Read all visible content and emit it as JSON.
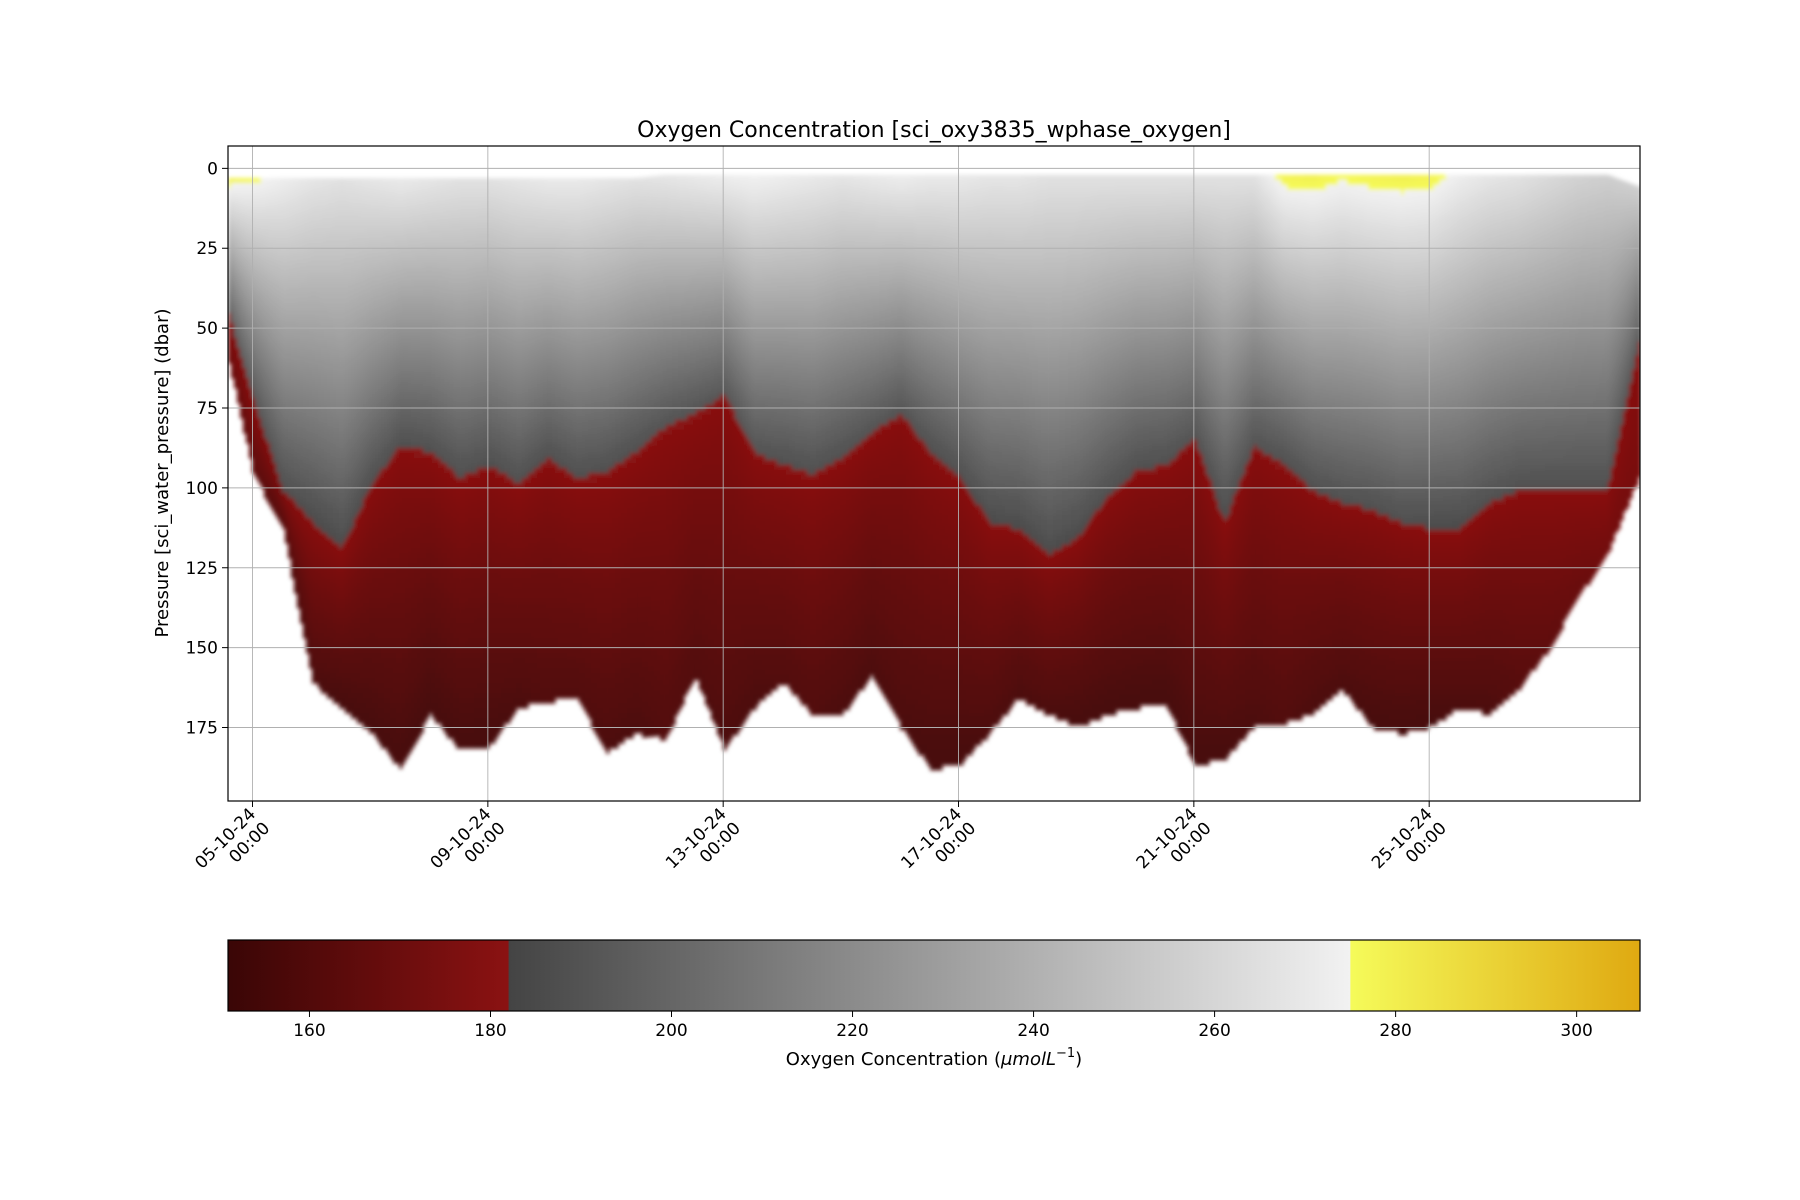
{
  "chart_data": {
    "type": "scatter",
    "title": "Oxygen Concentration [sci_oxy3835_wphase_oxygen]",
    "ylabel": "Pressure [sci_water_pressure] (dbar)",
    "y_inverted": true,
    "ylim": [
      198,
      -7
    ],
    "yticks": [
      0,
      25,
      50,
      75,
      100,
      125,
      150,
      175
    ],
    "xlim": [
      "2024-10-04T14:00",
      "2024-10-28T14:00"
    ],
    "xticks": [
      {
        "date": "2024-10-05T00:00",
        "line1": "05-10-24",
        "line2": "00:00"
      },
      {
        "date": "2024-10-09T00:00",
        "line1": "09-10-24",
        "line2": "00:00"
      },
      {
        "date": "2024-10-13T00:00",
        "line1": "13-10-24",
        "line2": "00:00"
      },
      {
        "date": "2024-10-17T00:00",
        "line1": "17-10-24",
        "line2": "00:00"
      },
      {
        "date": "2024-10-21T00:00",
        "line1": "21-10-24",
        "line2": "00:00"
      },
      {
        "date": "2024-10-25T00:00",
        "line1": "25-10-24",
        "line2": "00:00"
      }
    ],
    "grid": true,
    "series": [
      {
        "x": [
          "2024-10-04T14:00",
          "2024-10-05T00:00",
          "2024-10-05T12:00",
          "2024-10-06T00:00",
          "2024-10-06T12:00",
          "2024-10-07T00:00",
          "2024-10-07T12:00",
          "2024-10-08T00:00",
          "2024-10-08T12:00",
          "2024-10-09T00:00",
          "2024-10-09T12:00",
          "2024-10-10T00:00",
          "2024-10-10T12:00",
          "2024-10-11T00:00",
          "2024-10-11T12:00",
          "2024-10-12T00:00",
          "2024-10-12T12:00",
          "2024-10-13T00:00",
          "2024-10-13T12:00",
          "2024-10-14T00:00",
          "2024-10-14T12:00",
          "2024-10-15T00:00",
          "2024-10-15T12:00",
          "2024-10-16T00:00",
          "2024-10-16T12:00",
          "2024-10-17T00:00",
          "2024-10-17T12:00",
          "2024-10-18T00:00",
          "2024-10-18T12:00",
          "2024-10-19T00:00",
          "2024-10-19T12:00",
          "2024-10-20T00:00",
          "2024-10-20T12:00",
          "2024-10-21T00:00",
          "2024-10-21T12:00",
          "2024-10-22T00:00",
          "2024-10-22T12:00",
          "2024-10-23T00:00",
          "2024-10-23T12:00",
          "2024-10-24T00:00",
          "2024-10-24T12:00",
          "2024-10-25T00:00",
          "2024-10-25T12:00",
          "2024-10-26T00:00",
          "2024-10-26T12:00",
          "2024-10-27T00:00",
          "2024-10-27T12:00",
          "2024-10-28T00:00",
          "2024-10-28T14:00"
        ],
        "surface_pressure": [
          3,
          3,
          3,
          3,
          3,
          3,
          3,
          3,
          3,
          3,
          3,
          3,
          3,
          3,
          3,
          2,
          2,
          2,
          2,
          2,
          2,
          2,
          2,
          2,
          2,
          2,
          2,
          2,
          2,
          2,
          2,
          2,
          2,
          2,
          2,
          2,
          2,
          2,
          2,
          2,
          2,
          2,
          2,
          2,
          2,
          2,
          2,
          2,
          6
        ],
        "oxycline_pressure": [
          45,
          72,
          100,
          110,
          118,
          98,
          86,
          88,
          96,
          92,
          98,
          90,
          96,
          94,
          88,
          80,
          76,
          70,
          88,
          92,
          95,
          90,
          82,
          76,
          88,
          96,
          110,
          112,
          120,
          115,
          102,
          94,
          92,
          84,
          110,
          86,
          92,
          100,
          104,
          106,
          110,
          112,
          112,
          104,
          100,
          100,
          100,
          100,
          50
        ],
        "max_pressure": [
          60,
          95,
          112,
          160,
          168,
          176,
          187,
          170,
          181,
          180,
          168,
          166,
          165,
          182,
          176,
          178,
          158,
          181,
          168,
          160,
          170,
          170,
          158,
          174,
          187,
          186,
          176,
          165,
          170,
          174,
          170,
          168,
          167,
          186,
          184,
          174,
          173,
          170,
          162,
          174,
          176,
          174,
          168,
          170,
          162,
          150,
          134,
          120,
          94
        ],
        "surface_oxygen": [
          278,
          276,
          272,
          268,
          266,
          268,
          270,
          268,
          266,
          266,
          268,
          270,
          270,
          268,
          266,
          268,
          270,
          272,
          274,
          272,
          270,
          268,
          270,
          272,
          270,
          270,
          268,
          268,
          266,
          266,
          266,
          266,
          266,
          266,
          266,
          266,
          278,
          279,
          276,
          278,
          279,
          278,
          272,
          268,
          266,
          262,
          258,
          256,
          256
        ],
        "oxycline_oxygen": [
          198,
          192,
          188,
          186,
          186,
          188,
          188,
          188,
          188,
          188,
          188,
          188,
          188,
          188,
          188,
          190,
          190,
          192,
          190,
          188,
          188,
          188,
          190,
          190,
          188,
          188,
          186,
          186,
          186,
          186,
          188,
          188,
          188,
          190,
          186,
          190,
          188,
          188,
          188,
          188,
          188,
          186,
          186,
          188,
          188,
          188,
          188,
          188,
          194
        ],
        "bottom_oxygen": [
          170,
          164,
          160,
          158,
          156,
          156,
          156,
          156,
          156,
          156,
          158,
          160,
          160,
          158,
          158,
          160,
          160,
          158,
          158,
          160,
          160,
          158,
          158,
          158,
          156,
          156,
          158,
          158,
          158,
          156,
          156,
          156,
          156,
          156,
          156,
          158,
          160,
          158,
          158,
          156,
          156,
          156,
          158,
          158,
          162,
          165,
          168,
          172,
          175
        ]
      }
    ],
    "colorbar": {
      "label_prefix": "Oxygen Concentration (",
      "label_unit": "μmolL",
      "label_exp": "−1",
      "label_suffix": ")",
      "range": [
        151,
        307
      ],
      "ticks": [
        160,
        180,
        200,
        220,
        240,
        260,
        280,
        300
      ],
      "segments": [
        {
          "from": 151,
          "to": 182,
          "colors": [
            "#3a0606",
            "#8b1212"
          ]
        },
        {
          "from": 182,
          "to": 275,
          "colors": [
            "#444444",
            "#f2f2f2"
          ]
        },
        {
          "from": 275,
          "to": 307,
          "colors": [
            "#f5fb5a",
            "#dfa911"
          ]
        }
      ]
    }
  }
}
